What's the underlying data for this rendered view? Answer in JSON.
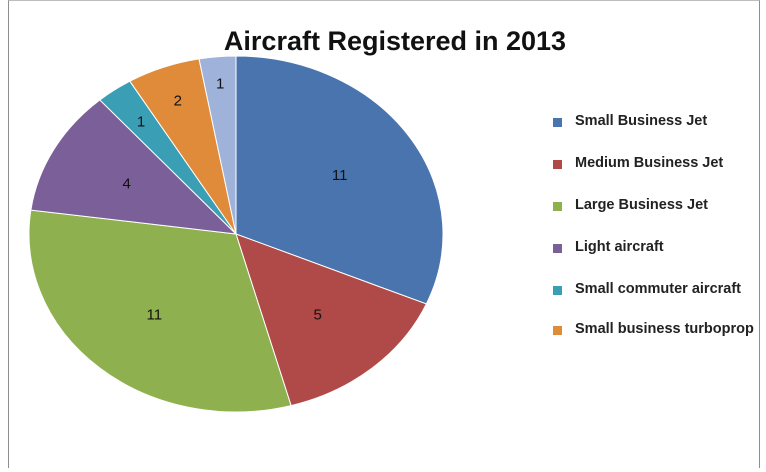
{
  "chart_data": {
    "type": "pie",
    "title": "Aircraft Registered in 2013",
    "categories": [
      "Small Business Jet",
      "Medium Business Jet",
      "Large Business Jet",
      "Light aircraft",
      "Small commuter aircraft",
      "Small business turboprop",
      ""
    ],
    "values": [
      11,
      5,
      11,
      4,
      1,
      2,
      1
    ],
    "colors": [
      "#4a74ae",
      "#b04a48",
      "#8fb04e",
      "#7b5f98",
      "#3a9fb5",
      "#e08b3a",
      "#9fb2da"
    ],
    "data_labels": [
      "11",
      "5",
      "11",
      "4",
      "1",
      "2",
      "1"
    ],
    "legend_position": "right",
    "start_angle_deg": 0,
    "direction": "clockwise"
  },
  "legend": {
    "items": [
      {
        "label": "Small Business Jet",
        "color": "#4a74ae"
      },
      {
        "label": "Medium Business Jet",
        "color": "#b04a48"
      },
      {
        "label": "Large Business Jet",
        "color": "#8fb04e"
      },
      {
        "label": "Light aircraft",
        "color": "#7b5f98"
      },
      {
        "label": "Small commuter aircraft",
        "color": "#3a9fb5"
      },
      {
        "label": "Small business turboprop",
        "color": "#e08b3a"
      }
    ]
  }
}
